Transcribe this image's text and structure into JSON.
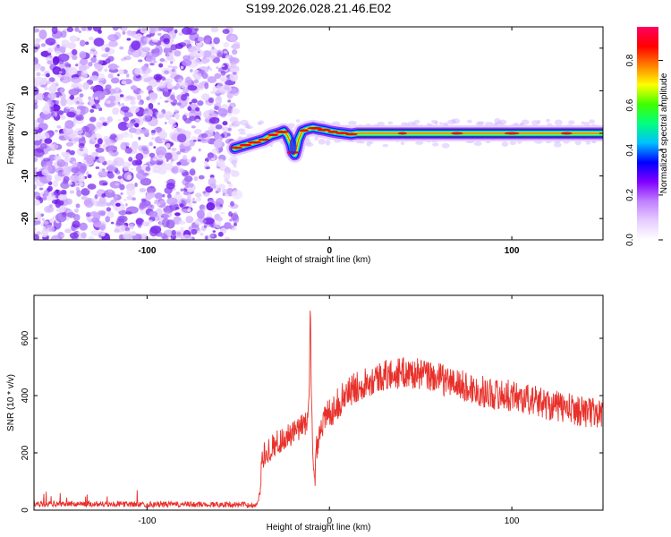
{
  "chart_data": [
    {
      "type": "heatmap",
      "title": "S199.2026.028.21.46.E02",
      "xlabel": "Height of straight line (km)",
      "ylabel": "Frequency (Hz)",
      "xlim": [
        -162,
        150
      ],
      "ylim": [
        -25,
        25
      ],
      "xticks": [
        -100,
        0,
        100
      ],
      "yticks": [
        -20,
        -10,
        0,
        10,
        20
      ],
      "noise_region_x": [
        -162,
        -52
      ],
      "ridge": {
        "x": [
          -52,
          -48,
          -44,
          -40,
          -36,
          -32,
          -28,
          -25,
          -23,
          -21,
          -20,
          -19,
          -18,
          -17,
          -15,
          -12,
          -9,
          -6,
          -3,
          0,
          4,
          8,
          12,
          15,
          20,
          150
        ],
        "freq": [
          -3.5,
          -3.0,
          -2.5,
          -2.0,
          -1.5,
          -0.5,
          0.0,
          0.5,
          -0.5,
          -2.5,
          -4.5,
          -5.0,
          -3.5,
          -1.5,
          0.5,
          1.0,
          1.3,
          1.0,
          0.8,
          0.5,
          0.2,
          0.0,
          -0.2,
          0.0,
          0.0,
          0.0
        ]
      },
      "ridge_peaks_x": [
        -51,
        -46,
        -41,
        -36,
        -31,
        -26,
        -20,
        -14,
        -8,
        -3,
        2,
        7,
        12,
        40,
        70,
        100,
        130
      ]
    },
    {
      "type": "colorbar",
      "label": "Normalized spectral amplitude",
      "range": [
        0,
        0.95
      ],
      "ticks": [
        "0.0",
        "0.2",
        "0.4",
        "0.6",
        "0.8"
      ],
      "colors": [
        "#ffffff",
        "#e6ccff",
        "#c080ff",
        "#8000ff",
        "#0000ff",
        "#00c0ff",
        "#00ff80",
        "#40ff00",
        "#ffff00",
        "#ff8000",
        "#ff0000",
        "#ff0060"
      ]
    },
    {
      "type": "line",
      "xlabel": "Height of straight line (km)",
      "ylabel": "SNR (10 * v/v)",
      "xlim": [
        -162,
        150
      ],
      "ylim": [
        0,
        750
      ],
      "xticks": [
        -100,
        0,
        100
      ],
      "yticks": [
        0,
        200,
        400,
        600
      ],
      "series": [
        {
          "name": "SNR",
          "color": "#e8302a",
          "control_x": [
            -162,
            -140,
            -100,
            -60,
            -40,
            -38,
            -37,
            -35,
            -30,
            -25,
            -20,
            -15,
            -12,
            -11,
            -10.5,
            -10,
            -9.5,
            -9,
            -8,
            -7,
            -5,
            0,
            10,
            20,
            30,
            40,
            50,
            60,
            70,
            80,
            90,
            100,
            110,
            120,
            130,
            140,
            150
          ],
          "control_y": [
            22,
            22,
            20,
            20,
            18,
            60,
            180,
            200,
            230,
            250,
            265,
            290,
            320,
            420,
            740,
            430,
            300,
            160,
            110,
            230,
            290,
            340,
            410,
            450,
            470,
            480,
            475,
            460,
            440,
            420,
            405,
            400,
            385,
            370,
            355,
            345,
            335
          ]
        }
      ]
    }
  ]
}
